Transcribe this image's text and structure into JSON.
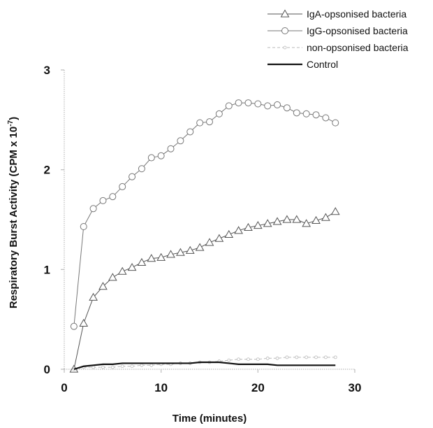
{
  "chart_data": {
    "type": "line",
    "xlabel": "Time (minutes)",
    "ylabel": "Respiratory Burst Activity (CPM x 10",
    "ylabel_sup": "-7",
    "ylabel_end": ")",
    "xlim": [
      0,
      30
    ],
    "ylim": [
      0,
      3
    ],
    "xticks": [
      0,
      10,
      20,
      30
    ],
    "yticks": [
      0,
      1,
      2,
      3
    ],
    "legend_position": "top-right",
    "grid": false,
    "x": [
      1,
      2,
      3,
      4,
      5,
      6,
      7,
      8,
      9,
      10,
      11,
      12,
      13,
      14,
      15,
      16,
      17,
      18,
      19,
      20,
      21,
      22,
      23,
      24,
      25,
      26,
      27,
      28
    ],
    "series": [
      {
        "name": "IgA-opsonised bacteria",
        "marker": "triangle",
        "color": "#555555",
        "values": [
          0.0,
          0.46,
          0.72,
          0.83,
          0.92,
          0.98,
          1.02,
          1.07,
          1.11,
          1.12,
          1.15,
          1.17,
          1.19,
          1.22,
          1.27,
          1.31,
          1.35,
          1.39,
          1.42,
          1.44,
          1.46,
          1.48,
          1.5,
          1.5,
          1.46,
          1.49,
          1.52,
          1.58
        ]
      },
      {
        "name": "IgG-opsonised bacteria",
        "marker": "circle",
        "color": "#777777",
        "values": [
          0.43,
          1.43,
          1.61,
          1.69,
          1.73,
          1.83,
          1.93,
          2.01,
          2.12,
          2.14,
          2.21,
          2.29,
          2.38,
          2.47,
          2.48,
          2.56,
          2.64,
          2.67,
          2.67,
          2.66,
          2.64,
          2.65,
          2.62,
          2.57,
          2.56,
          2.55,
          2.52,
          2.47
        ]
      },
      {
        "name": "non-opsonised bacteria",
        "marker": "dot",
        "color": "#b8b8b8",
        "values": [
          0.0,
          0.02,
          0.02,
          0.02,
          0.02,
          0.03,
          0.03,
          0.04,
          0.04,
          0.05,
          0.05,
          0.06,
          0.06,
          0.07,
          0.07,
          0.08,
          0.09,
          0.1,
          0.1,
          0.1,
          0.11,
          0.11,
          0.12,
          0.12,
          0.12,
          0.12,
          0.12,
          0.12
        ]
      },
      {
        "name": "Control",
        "marker": "none",
        "color": "#111111",
        "values": [
          0.0,
          0.03,
          0.04,
          0.05,
          0.05,
          0.06,
          0.06,
          0.06,
          0.06,
          0.06,
          0.06,
          0.06,
          0.06,
          0.07,
          0.07,
          0.07,
          0.06,
          0.05,
          0.05,
          0.05,
          0.05,
          0.04,
          0.04,
          0.04,
          0.04,
          0.04,
          0.04,
          0.04
        ]
      }
    ]
  }
}
